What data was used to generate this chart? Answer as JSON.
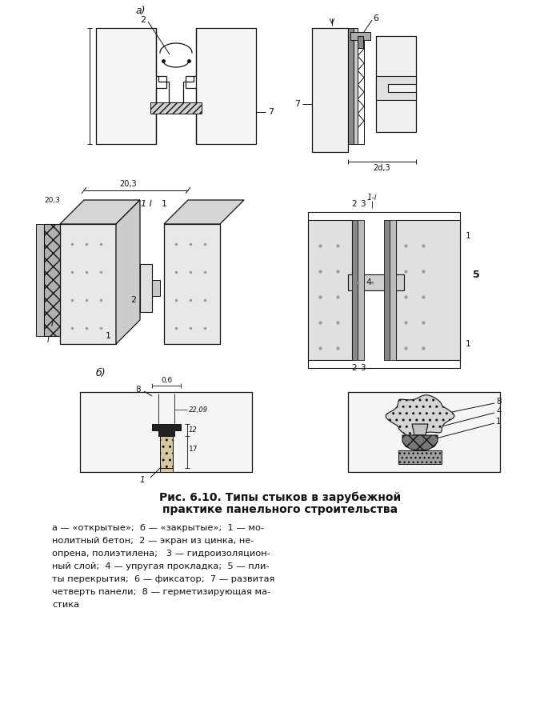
{
  "bg_color": "#ffffff",
  "lc": "#111111",
  "title_line1": "Рис. 6.10. Типы стыков в зарубежной",
  "title_line2": "практике панельного строительства",
  "caption_lines": [
    "а — «открытые»;  б — «закрытые»;  1 — мо-",
    "нолитный бетон;  2 — экран из цинка, не-",
    "опрена, полиэтилена;   3 — гидроизоляцион-",
    "ный слой;  4 — упругая прокладка;  5 — пли-",
    "ты перекрытия;  6 — фиксатор;  7 — развитая",
    "четверть панели;  8 — герметизирующая ма-",
    "стика"
  ]
}
